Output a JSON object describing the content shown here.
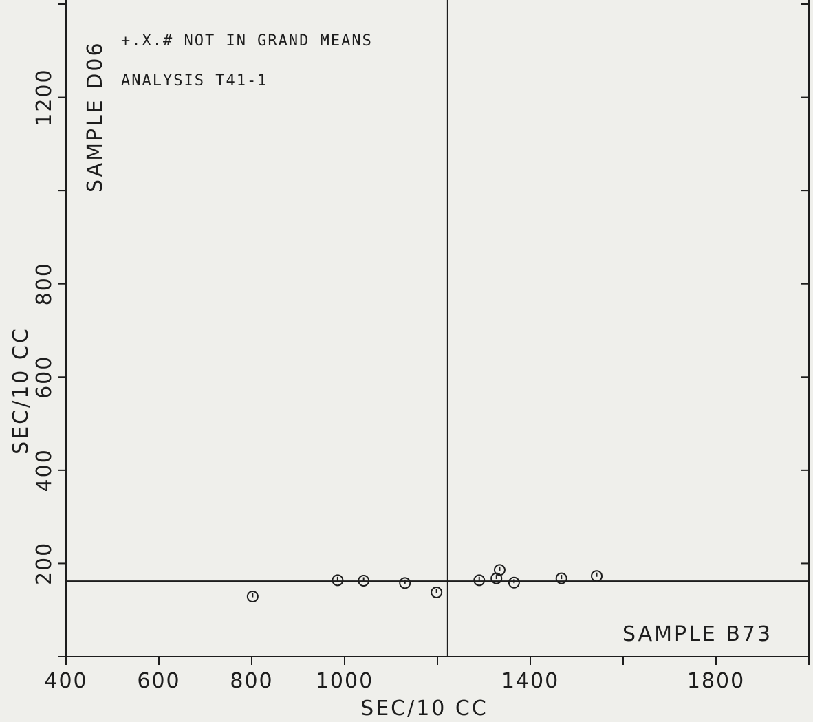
{
  "chart_data": {
    "type": "scatter",
    "title": "",
    "xlabel": "SEC/10 CC",
    "ylabel": "SEC/10 CC",
    "xlim": [
      400,
      2000
    ],
    "ylim": [
      0,
      1400
    ],
    "x_ticks": [
      400,
      600,
      800,
      1000,
      1200,
      1400,
      1600,
      1800,
      2000
    ],
    "x_tick_labels": [
      "400",
      "600",
      "800",
      "1000",
      "",
      "1400",
      "",
      "1800",
      ""
    ],
    "y_ticks": [
      0,
      200,
      400,
      600,
      800,
      1000,
      1200,
      1400
    ],
    "y_tick_labels": [
      "",
      "200",
      "400",
      "600",
      "800",
      "",
      "1200",
      ""
    ],
    "reference_lines": {
      "x": 1222,
      "y": 162
    },
    "annotations": {
      "note": "+.X.# NOT IN GRAND MEANS",
      "analysis": "ANALYSIS   T41-1",
      "y_sample": "SAMPLE D06",
      "x_sample": "SAMPLE B73"
    },
    "points": [
      {
        "x": 802,
        "y": 129
      },
      {
        "x": 985,
        "y": 164
      },
      {
        "x": 1041,
        "y": 163
      },
      {
        "x": 1130,
        "y": 158
      },
      {
        "x": 1198,
        "y": 138
      },
      {
        "x": 1290,
        "y": 164
      },
      {
        "x": 1327,
        "y": 168
      },
      {
        "x": 1334,
        "y": 186
      },
      {
        "x": 1365,
        "y": 159
      },
      {
        "x": 1467,
        "y": 168
      },
      {
        "x": 1543,
        "y": 173
      }
    ],
    "grid": false,
    "legend": "none"
  }
}
